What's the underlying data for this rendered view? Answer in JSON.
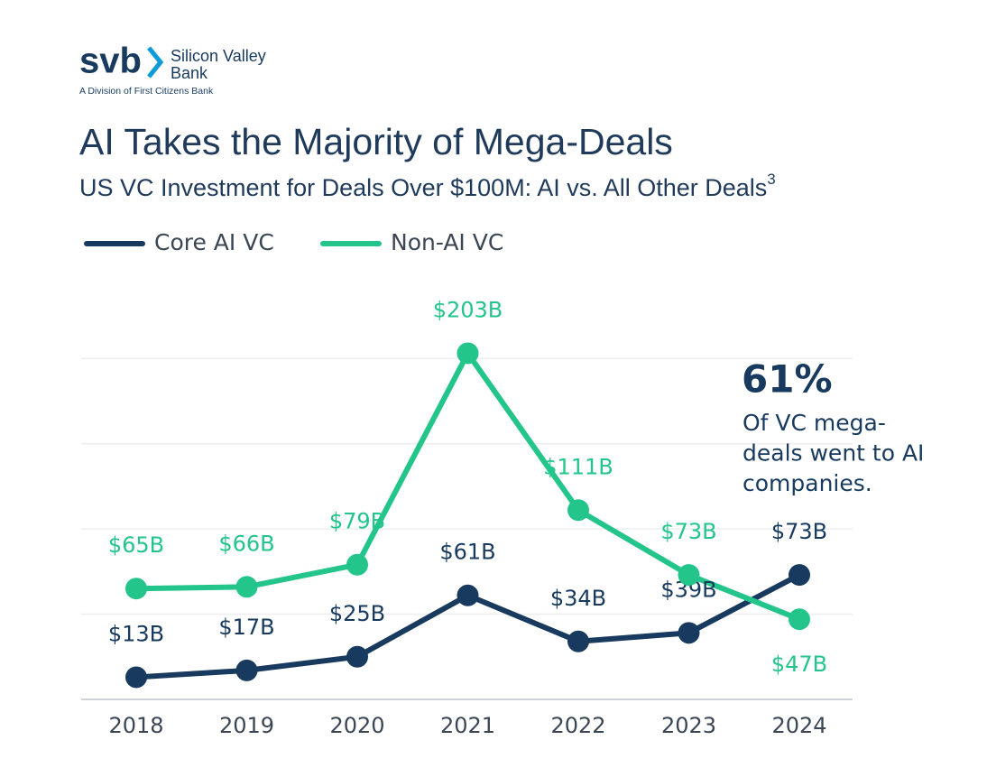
{
  "logo": {
    "mark": "svb",
    "name_line1": "Silicon Valley",
    "name_line2": "Bank",
    "tagline": "A Division of First Citizens Bank"
  },
  "chart_data": {
    "type": "line",
    "title": "AI Takes the Majority of Mega-Deals",
    "subtitle": "US VC Investment for Deals Over $100M: AI vs. All Other Deals",
    "subtitle_note": "3",
    "categories": [
      "2018",
      "2019",
      "2020",
      "2021",
      "2022",
      "2023",
      "2024"
    ],
    "series": [
      {
        "name": "Core AI VC",
        "color": "#173a5e",
        "values": [
          13,
          17,
          25,
          61,
          34,
          39,
          73
        ],
        "value_labels": [
          "$13B",
          "$17B",
          "$25B",
          "$61B",
          "$34B",
          "$39B",
          "$73B"
        ]
      },
      {
        "name": "Non-AI VC",
        "color": "#23c58a",
        "values": [
          65,
          66,
          79,
          203,
          111,
          73,
          47
        ],
        "value_labels": [
          "$65B",
          "$66B",
          "$79B",
          "$203B",
          "$111B",
          "$73B",
          "$47B"
        ]
      }
    ],
    "ylim": [
      0,
      235
    ],
    "yticks": [
      0,
      50,
      100,
      150,
      200
    ],
    "grid": true,
    "annotation": {
      "headline": "61%",
      "lines": [
        "Of VC mega-",
        "deals went to AI",
        "companies."
      ]
    }
  }
}
